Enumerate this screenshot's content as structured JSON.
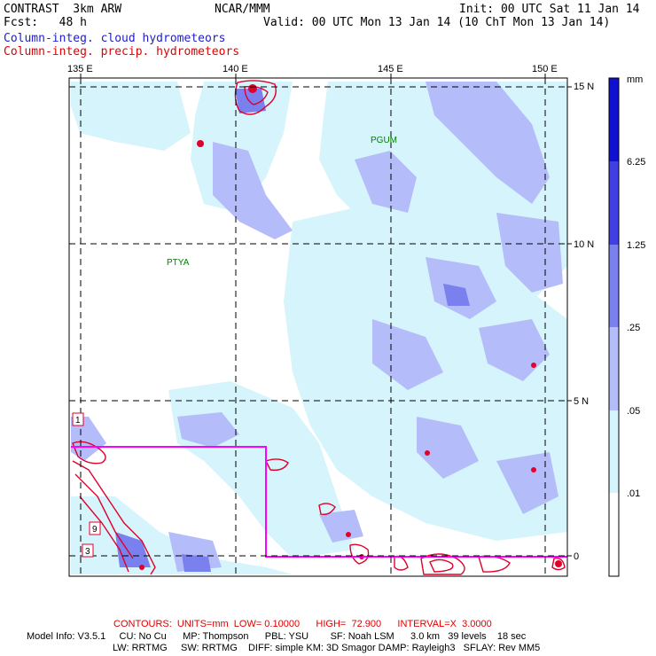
{
  "header": {
    "left_line1": "CONTRAST  3km ARW",
    "left_line2": "Fcst:   48 h",
    "center_line1": "NCAR/MMM",
    "right_line1": "Init: 00 UTC Sat 11 Jan 14",
    "right_line2": "Valid: 00 UTC Mon 13 Jan 14 (10 ChT Mon 13 Jan 14)",
    "legend_cloud": "Column-integ. cloud hydrometeors",
    "legend_precip": "Column-integ. precip. hydrometeors"
  },
  "map": {
    "lon_labels": [
      "135 E",
      "140 E",
      "145 E",
      "150 E"
    ],
    "lat_labels": [
      "15 N",
      "10 N",
      "5 N",
      "0"
    ],
    "stations": [
      "PGUM",
      "PTYA"
    ],
    "box_numbers": [
      "1",
      "9",
      "3"
    ],
    "colors": {
      "frame": "#000000",
      "grid": "#000000",
      "contour": "#e0002a",
      "inset_box": "#ff00ff",
      "station": "#008000",
      "level1": "#d6f4fb",
      "level2": "#b4bcfa",
      "level3": "#7a80ee",
      "level4": "#4040e0",
      "level5": "#1010d0"
    }
  },
  "colorbar": {
    "unit": "mm",
    "labels": [
      "6.25",
      "1.25",
      ".25",
      ".05",
      ".01"
    ],
    "colors": [
      "#ffffff",
      "#d6f4fb",
      "#b4bcfa",
      "#7a80ee",
      "#4040e0",
      "#1010d0"
    ]
  },
  "footer": {
    "contours": "CONTOURS:  UNITS=mm  LOW= 0.10000      HIGH=  72.900      INTERVAL=X  3.0000",
    "model_line1": "Model Info: V3.5.1     CU: No Cu      MP: Thompson      PBL: YSU        SF: Noah LSM      3.0 km   39 levels    18 sec",
    "model_line2": "LW: RRTMG     SW: RRTMG    DIFF: simple KM: 3D Smagor DAMP: Rayleigh3   SFLAY: Rev MM5"
  }
}
